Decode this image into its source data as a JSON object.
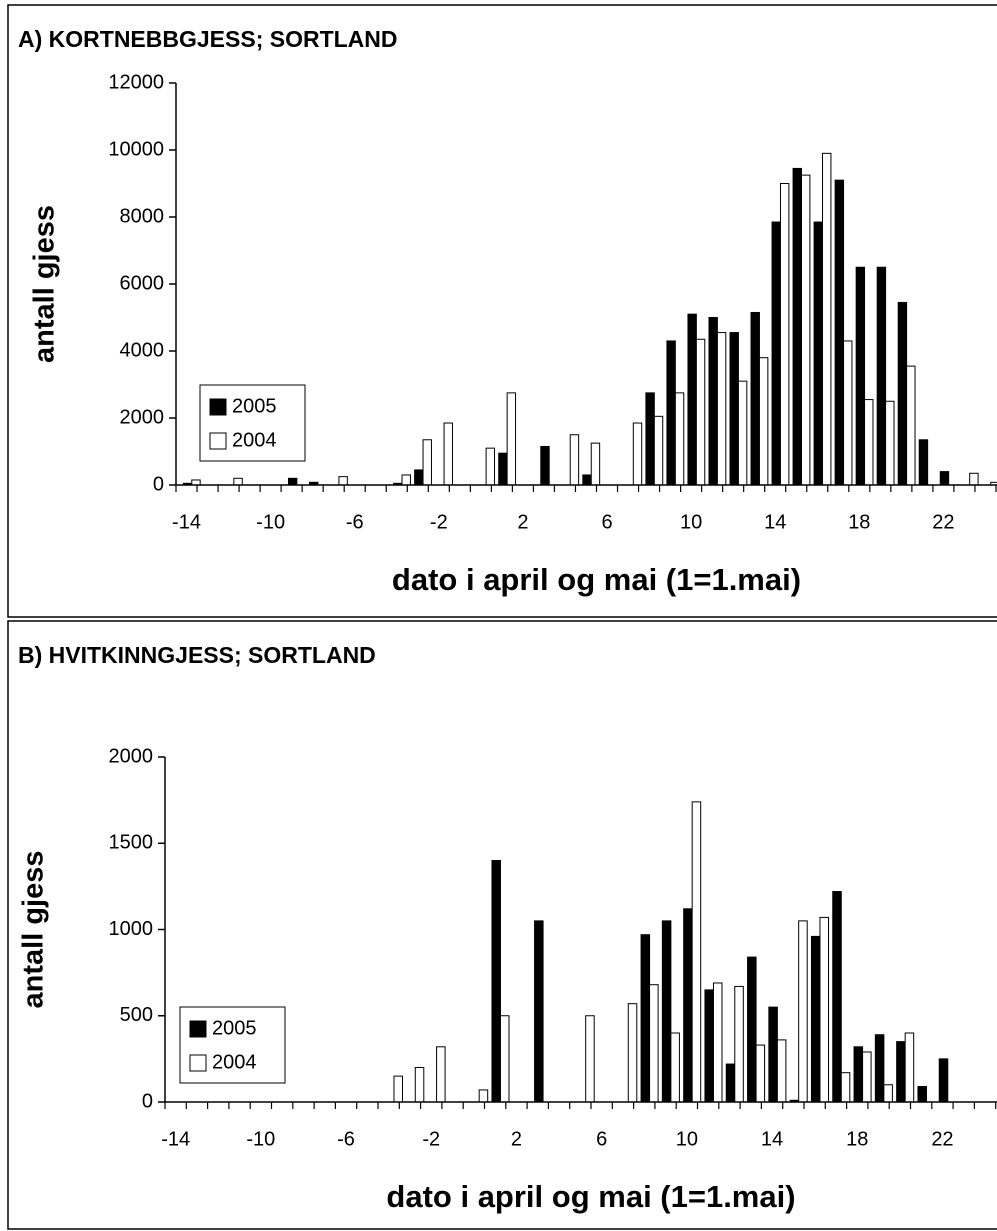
{
  "chart_data": [
    {
      "type": "bar",
      "title": "A) KORTNEBBGJESS; SORTLAND",
      "x_label": "dato i april og mai (1=1.mai)",
      "y_label": "antall gjess",
      "x": [
        -14,
        -13,
        -12,
        -11,
        -10,
        -9,
        -8,
        -7,
        -6,
        -5,
        -4,
        -3,
        -2,
        -1,
        0,
        1,
        2,
        3,
        4,
        5,
        6,
        7,
        8,
        9,
        10,
        11,
        12,
        13,
        14,
        15,
        16,
        17,
        18,
        19,
        20,
        21,
        22,
        23,
        24,
        25
      ],
      "series": [
        {
          "name": "2005",
          "color": "#000000",
          "values": [
            50,
            0,
            0,
            0,
            0,
            200,
            80,
            0,
            0,
            0,
            50,
            450,
            0,
            0,
            0,
            950,
            0,
            1150,
            0,
            300,
            0,
            0,
            2750,
            4300,
            5100,
            5000,
            4550,
            5150,
            7850,
            9450,
            7850,
            9100,
            6500,
            6500,
            5450,
            1350,
            400,
            0,
            0,
            0
          ]
        },
        {
          "name": "2004",
          "color": "#ffffff",
          "values": [
            150,
            0,
            200,
            0,
            0,
            0,
            0,
            250,
            0,
            0,
            300,
            1350,
            1850,
            0,
            1100,
            2750,
            0,
            0,
            1500,
            1250,
            0,
            1850,
            2050,
            2750,
            4350,
            4550,
            3100,
            3800,
            9000,
            9250,
            9900,
            4300,
            2550,
            2500,
            3550,
            0,
            0,
            350,
            80,
            0
          ]
        }
      ],
      "xlim": [
        -14.5,
        25.5
      ],
      "xticks": [
        -14,
        -10,
        -6,
        -2,
        2,
        6,
        10,
        14,
        18,
        22
      ],
      "ylim": [
        0,
        12000
      ],
      "yticks": [
        0,
        2000,
        4000,
        6000,
        8000,
        10000,
        12000
      ],
      "legend": "left",
      "grid": false
    },
    {
      "type": "bar",
      "title": "B) HVITKINNGJESS; SORTLAND",
      "x_label": "dato i april og mai (1=1.mai)",
      "y_label": "antall gjess",
      "x": [
        -14,
        -13,
        -12,
        -11,
        -10,
        -9,
        -8,
        -7,
        -6,
        -5,
        -4,
        -3,
        -2,
        -1,
        0,
        1,
        2,
        3,
        4,
        5,
        6,
        7,
        8,
        9,
        10,
        11,
        12,
        13,
        14,
        15,
        16,
        17,
        18,
        19,
        20,
        21,
        22,
        23,
        24,
        25
      ],
      "series": [
        {
          "name": "2005",
          "color": "#000000",
          "values": [
            0,
            0,
            0,
            0,
            0,
            0,
            0,
            0,
            0,
            0,
            0,
            0,
            0,
            0,
            0,
            1400,
            0,
            1050,
            0,
            0,
            0,
            0,
            970,
            1050,
            1120,
            650,
            220,
            840,
            550,
            10,
            960,
            1220,
            320,
            390,
            350,
            90,
            250,
            0,
            0,
            0
          ]
        },
        {
          "name": "2004",
          "color": "#ffffff",
          "values": [
            0,
            0,
            0,
            0,
            0,
            0,
            0,
            0,
            0,
            0,
            150,
            200,
            320,
            0,
            70,
            500,
            0,
            0,
            0,
            500,
            0,
            570,
            680,
            400,
            1740,
            690,
            670,
            330,
            360,
            1050,
            1070,
            170,
            290,
            100,
            400,
            0,
            0,
            0,
            0,
            50
          ]
        }
      ],
      "xlim": [
        -14.5,
        25.5
      ],
      "xticks": [
        -14,
        -10,
        -6,
        -2,
        2,
        6,
        10,
        14,
        18,
        22
      ],
      "ylim": [
        0,
        2000
      ],
      "yticks": [
        0,
        500,
        1000,
        1500,
        2000
      ],
      "legend": "left",
      "grid": false
    }
  ]
}
